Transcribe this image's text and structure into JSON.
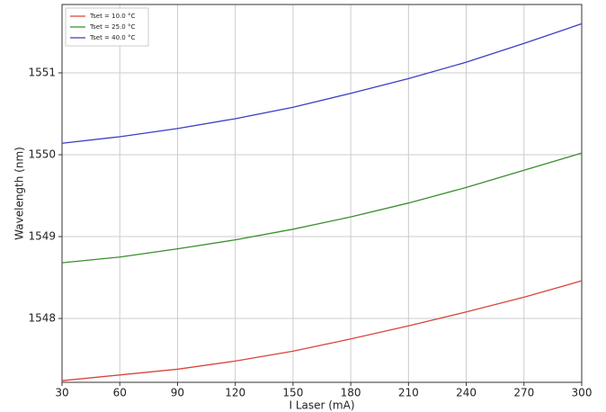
{
  "chart_data": {
    "type": "line",
    "x_label": "I Laser (mA)",
    "y_label": "Wavelength (nm)",
    "x": [
      30,
      60,
      90,
      120,
      150,
      180,
      210,
      240,
      270,
      300
    ],
    "series": [
      {
        "name": "Tset = 10.0 °C",
        "color": "#d9453b",
        "values": [
          1547.24,
          1547.31,
          1547.38,
          1547.48,
          1547.6,
          1547.75,
          1547.91,
          1548.08,
          1548.26,
          1548.46
        ]
      },
      {
        "name": "Tset = 25.0 °C",
        "color": "#3a8f2e",
        "values": [
          1548.68,
          1548.75,
          1548.85,
          1548.96,
          1549.09,
          1549.24,
          1549.41,
          1549.6,
          1549.81,
          1550.02
        ]
      },
      {
        "name": "Tset = 40.0 °C",
        "color": "#3b3fc4",
        "values": [
          1550.14,
          1550.22,
          1550.32,
          1550.44,
          1550.58,
          1550.75,
          1550.93,
          1551.13,
          1551.36,
          1551.6
        ]
      }
    ],
    "xlim": [
      30,
      300
    ],
    "xticks": [
      30,
      60,
      90,
      120,
      150,
      180,
      210,
      240,
      270,
      300
    ],
    "ylim": [
      1547.22,
      1551.835
    ],
    "yticks": [
      1548,
      1549,
      1550,
      1551
    ],
    "grid": true,
    "legend": "upper-left"
  }
}
